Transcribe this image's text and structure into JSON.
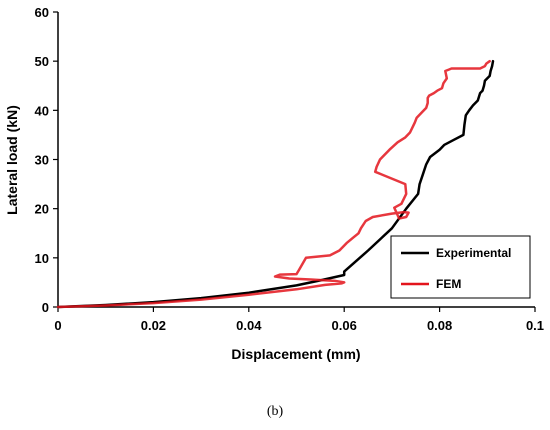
{
  "caption": "(b)",
  "chart_data": {
    "type": "line",
    "title": "",
    "xlabel": "Displacement (mm)",
    "ylabel": "Lateral load (kN)",
    "xlim": [
      0,
      0.1
    ],
    "ylim": [
      0,
      60
    ],
    "xticks": [
      0,
      0.02,
      0.04,
      0.06,
      0.08,
      0.1
    ],
    "xtick_labels": [
      "0",
      "0.02",
      "0.04",
      "0.06",
      "0.08",
      "0.1"
    ],
    "yticks": [
      0,
      10,
      20,
      30,
      40,
      50,
      60
    ],
    "ytick_labels": [
      "0",
      "10",
      "20",
      "30",
      "40",
      "50",
      "60"
    ],
    "grid": false,
    "legend_position": "bottom-right",
    "series": [
      {
        "name": "Experimental",
        "color": "#000000",
        "x": [
          0,
          0.01,
          0.02,
          0.03,
          0.04,
          0.05,
          0.055,
          0.06,
          0.06,
          0.065,
          0.07,
          0.073,
          0.0755,
          0.0758,
          0.0765,
          0.0772,
          0.078,
          0.08,
          0.081,
          0.083,
          0.085,
          0.0852,
          0.0855,
          0.0862,
          0.087,
          0.088,
          0.0885,
          0.089,
          0.0893,
          0.0895,
          0.0905,
          0.0907,
          0.091,
          0.0912
        ],
        "y": [
          0,
          0.4,
          1.0,
          1.8,
          2.9,
          4.4,
          5.4,
          6.5,
          7.2,
          11.5,
          16,
          20,
          23,
          25,
          27,
          29,
          30.5,
          32,
          33,
          34,
          35,
          37,
          39,
          40,
          41,
          42,
          43.5,
          44,
          45,
          46,
          47,
          48,
          49,
          50
        ]
      },
      {
        "name": "FEM",
        "color": "#e3141c",
        "x": [
          0,
          0.01,
          0.02,
          0.03,
          0.04,
          0.05,
          0.056,
          0.0595,
          0.06,
          0.058,
          0.053,
          0.0485,
          0.0455,
          0.0465,
          0.05,
          0.0505,
          0.052,
          0.057,
          0.059,
          0.0605,
          0.062,
          0.063,
          0.0635,
          0.0645,
          0.066,
          0.07,
          0.0725,
          0.0735,
          0.073,
          0.0715,
          0.0705,
          0.072,
          0.073,
          0.0728,
          0.0665,
          0.0668,
          0.0675,
          0.0695,
          0.0712,
          0.0728,
          0.0738,
          0.0748,
          0.0752,
          0.0762,
          0.0772,
          0.0775,
          0.0775,
          0.0778,
          0.0788,
          0.0795,
          0.0805,
          0.0808,
          0.0815,
          0.0812,
          0.082,
          0.0825,
          0.0885,
          0.0895,
          0.0898,
          0.0905
        ],
        "y": [
          0,
          0.3,
          0.8,
          1.5,
          2.5,
          3.6,
          4.5,
          4.8,
          5.0,
          5.3,
          5.6,
          5.8,
          6.2,
          6.6,
          6.7,
          7.5,
          10,
          10.5,
          11.5,
          13,
          14.2,
          15,
          16,
          17.5,
          18.3,
          19,
          19.3,
          19.2,
          18.3,
          18,
          20.2,
          21,
          23,
          25,
          27.5,
          28.5,
          30,
          32,
          33.5,
          34.5,
          35.5,
          37.5,
          38.5,
          39.5,
          40.5,
          41.5,
          42.5,
          43,
          43.5,
          44,
          44.5,
          45.5,
          46.5,
          48,
          48.3,
          48.5,
          48.5,
          49,
          49.5,
          50
        ]
      }
    ]
  }
}
